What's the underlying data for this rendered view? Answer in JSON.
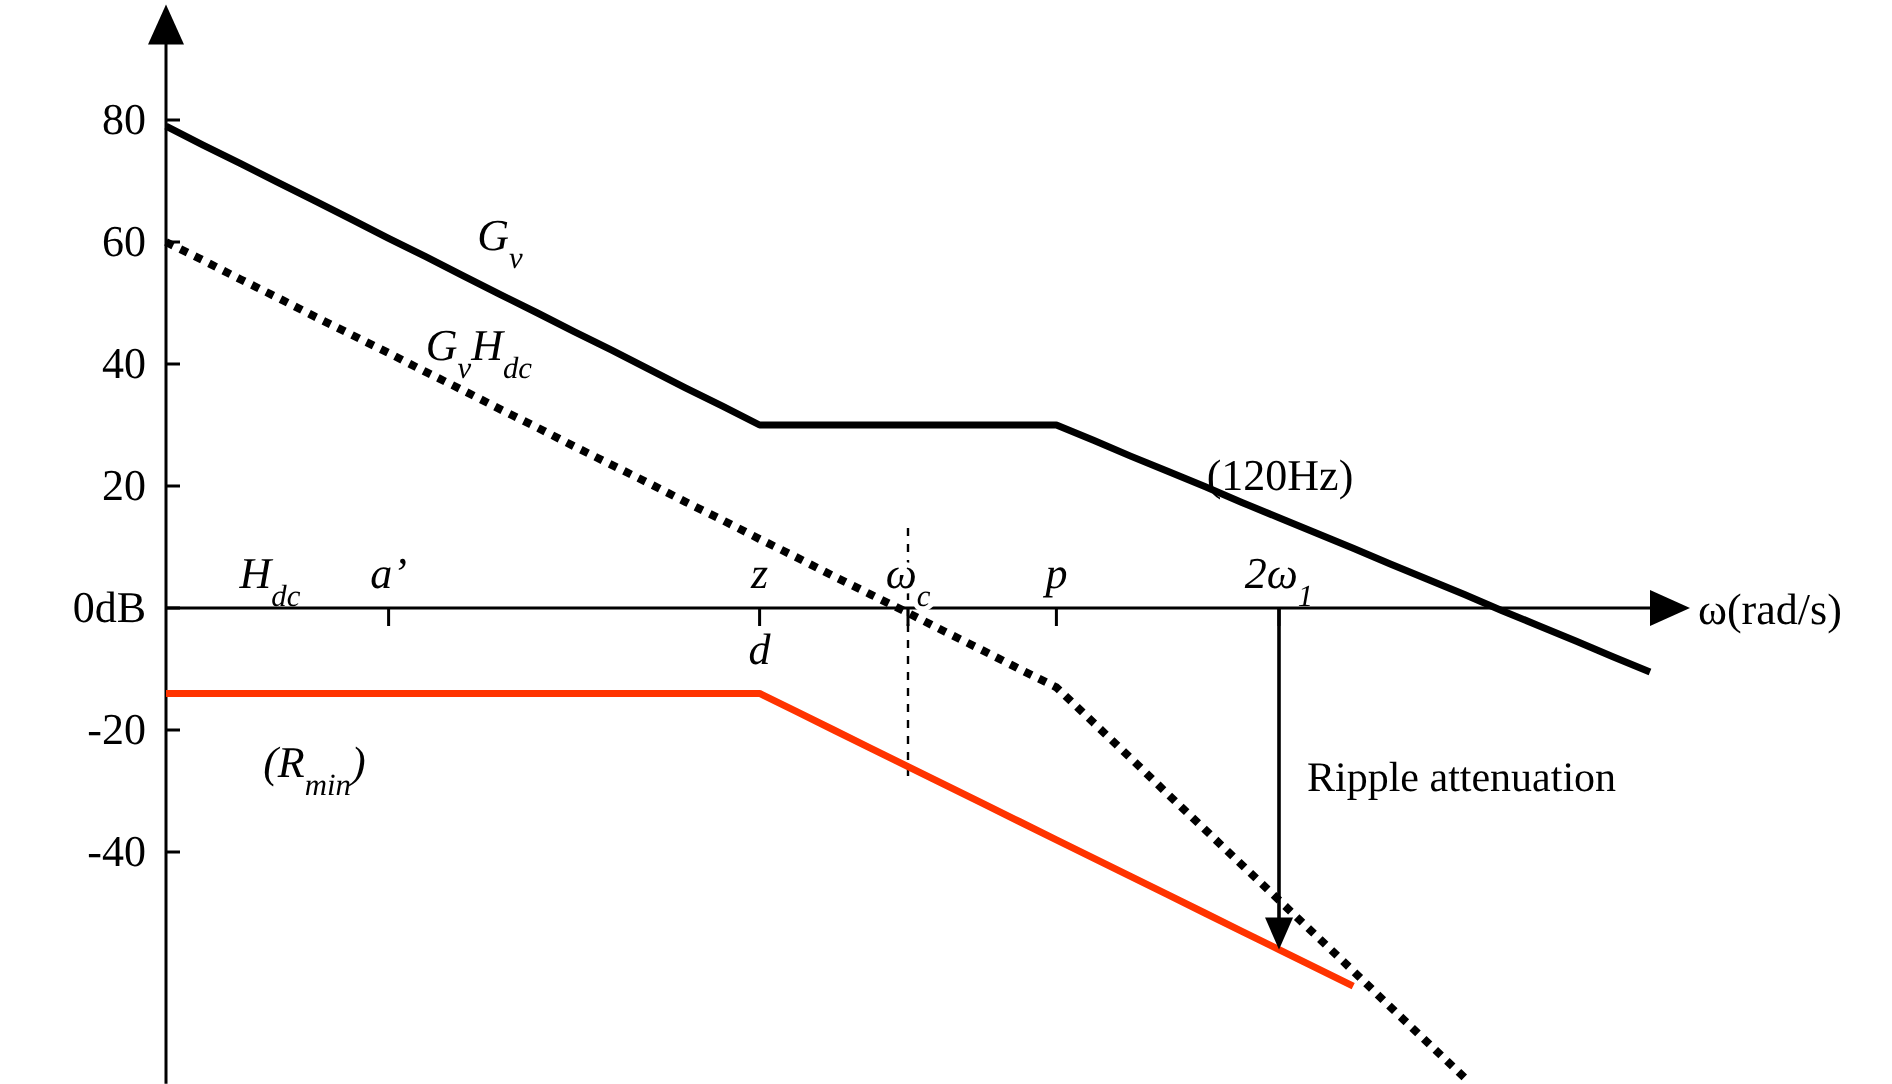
{
  "chart_data": {
    "type": "line",
    "xlabel": "ω(rad/s)",
    "categories": [
      null,
      null,
      null,
      null,
      null,
      null,
      "a’",
      null,
      null,
      null,
      null,
      null,
      null,
      null,
      null,
      null,
      "z",
      null,
      null,
      null,
      "ω$_{c}$",
      null,
      null,
      null,
      "p",
      null,
      null,
      null,
      null,
      null,
      "2ω$_{1}$",
      null,
      null,
      null,
      null,
      null,
      null,
      null,
      null,
      null,
      null
    ],
    "ylim": [
      -78,
      96
    ],
    "yticks": [
      80,
      60,
      40,
      20,
      {
        "value": 0,
        "label": "0dB"
      },
      -20,
      -40
    ],
    "series": [
      {
        "name": "G$_{v}$",
        "color": "#000000",
        "line_style": "solid",
        "values": [
          79,
          75.9,
          72.9,
          69.8,
          66.8,
          63.7,
          60.6,
          57.6,
          54.5,
          51.4,
          48.4,
          45.3,
          42.3,
          39.2,
          36.1,
          33.1,
          30,
          30,
          30,
          30,
          30,
          30,
          30,
          30,
          30,
          27.5,
          24.9,
          22.4,
          19.9,
          17.3,
          14.8,
          12.3,
          9.8,
          7.2,
          4.7,
          2.2,
          -0.4,
          -2.9,
          -5.4,
          -8,
          -10.5
        ]
      },
      {
        "name": "G$_{v}$H$_{dc}$",
        "color": "#000000",
        "line_style": "dotted",
        "values": [
          60,
          57,
          53.9,
          50.9,
          47.8,
          44.8,
          41.8,
          38.7,
          35.7,
          32.6,
          29.6,
          26.5,
          23.5,
          20.5,
          17.4,
          14.4,
          11.3,
          8.3,
          5.2,
          2.2,
          -0.8,
          -3.9,
          -6.9,
          -10,
          -13,
          -18.8,
          -24.6,
          -30.5,
          -36.3,
          -42.1,
          -47.9,
          -53.7,
          -59.5,
          -65.4,
          -71.2,
          -77,
          null,
          null,
          null,
          null,
          null
        ]
      },
      {
        "name": "(R$_{min}$)",
        "color": "#ff3300",
        "line_style": "solid",
        "values": [
          -14,
          -14,
          -14,
          -14,
          -14,
          -14,
          -14,
          -14,
          -14,
          -14,
          -14,
          -14,
          -14,
          -14,
          -14,
          -14,
          -14,
          -17,
          -20,
          -23,
          -26,
          -29,
          -32,
          -35,
          -38,
          -41,
          -44,
          -47,
          -50,
          -53,
          -56,
          -59,
          -62,
          null,
          null,
          null,
          null,
          null,
          null,
          null,
          null
        ]
      }
    ],
    "ref_lines": [
      {
        "axis": "x",
        "value": "ω$_{c}$",
        "line_style": "dotted",
        "color": "#000000"
      }
    ],
    "annotations": [
      "H$_{dc}$",
      "d",
      "(120Hz)",
      "Ripple attenuation"
    ]
  }
}
